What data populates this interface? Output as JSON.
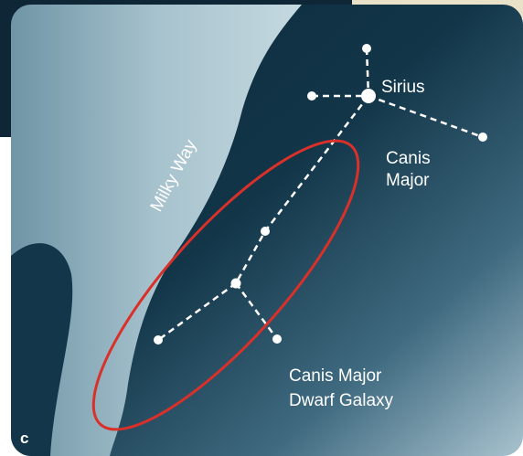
{
  "labels": {
    "star": "Sirius",
    "constellation": [
      "Canis",
      "Major"
    ],
    "band": "Milky Way",
    "galaxy": [
      "Canis Major",
      "Dwarf Galaxy"
    ],
    "panel": "c"
  }
}
